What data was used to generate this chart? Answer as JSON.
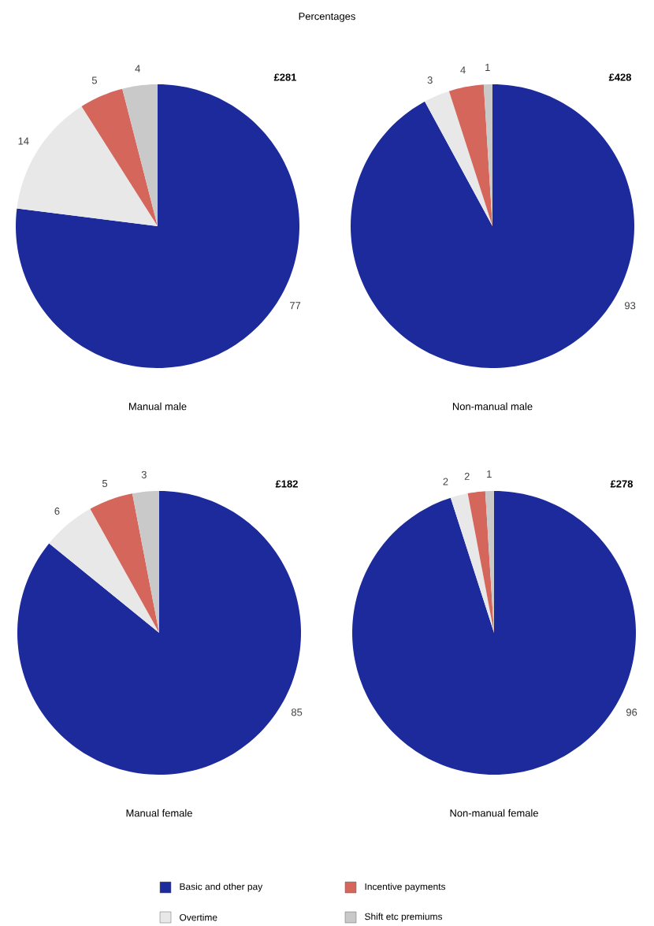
{
  "chart_data": [
    {
      "type": "pie",
      "title": "Manual male",
      "annotations": [
        "Percentages",
        "£281"
      ],
      "categories": [
        "Basic and other pay",
        "Overtime",
        "Incentive payments",
        "Shift etc premiums"
      ],
      "values": [
        77,
        14,
        5,
        4
      ],
      "colors": [
        "#1c2a9c",
        "#e8e8e8",
        "#d4665c",
        "#c9c9c9"
      ],
      "data_labels": true,
      "legend": "bottom"
    },
    {
      "type": "pie",
      "title": "Non-manual male",
      "annotations": [
        "£428"
      ],
      "categories": [
        null,
        null,
        null,
        null
      ],
      "values": [
        93,
        3,
        4,
        1
      ],
      "colors": [
        "#1c2a9c",
        "#e8e8e8",
        "#d4665c",
        "#c9c9c9"
      ],
      "data_labels": true
    },
    {
      "type": "pie",
      "title": "Manual female",
      "annotations": [
        "£182"
      ],
      "categories": [
        null,
        null,
        null,
        null
      ],
      "values": [
        85,
        6,
        5,
        3
      ],
      "colors": [
        "#1c2a9c",
        "#e8e8e8",
        "#d4665c",
        "#c9c9c9"
      ],
      "data_labels": true
    },
    {
      "type": "pie",
      "title": "Non-manual female",
      "annotations": [
        "£278"
      ],
      "categories": [
        null,
        null,
        null,
        null
      ],
      "values": [
        96,
        2,
        2,
        1
      ],
      "colors": [
        "#1c2a9c",
        "#e8e8e8",
        "#d4665c",
        "#c9c9c9"
      ],
      "data_labels": true
    }
  ]
}
